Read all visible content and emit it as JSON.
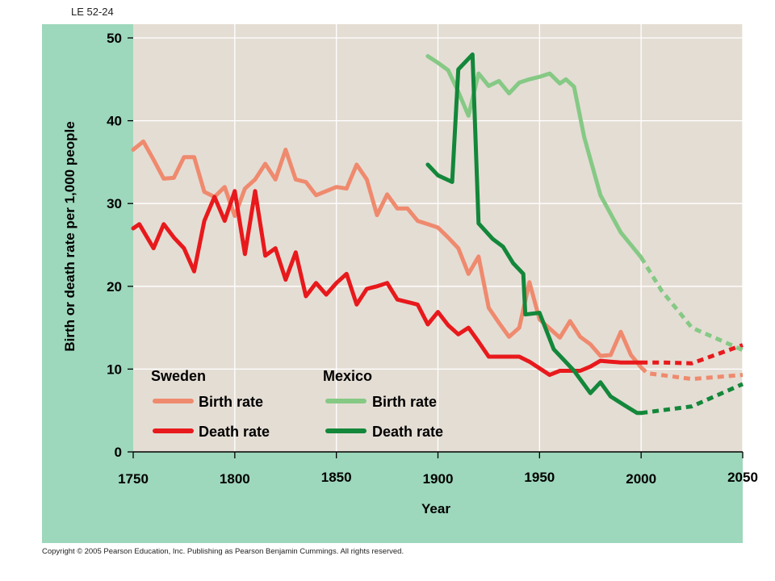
{
  "header": {
    "slide_label": "LE 52-24"
  },
  "footer": {
    "copyright_prefix": "Copyright",
    "copyright_symbol": "©",
    "copyright_text": "2005 Pearson Education, Inc. Publishing as Pearson Benjamin Cummings. All rights reserved."
  },
  "colors": {
    "panel": "#9dd7bc",
    "plot_bg": "#e4ddd4",
    "sweden_birth": "#ef8a6e",
    "sweden_death": "#e8191c",
    "mexico_birth": "#85c985",
    "mexico_death": "#13873a"
  },
  "chart_data": {
    "type": "line",
    "title": "",
    "xlabel": "Year",
    "ylabel": "Birth or death rate per 1,000 people",
    "xlim": [
      1750,
      2050
    ],
    "ylim": [
      0,
      50
    ],
    "x_ticks": [
      "1750",
      "1800",
      "1850",
      "1900",
      "1950",
      "2000",
      "2050"
    ],
    "y_ticks": [
      "0",
      "10",
      "20",
      "30",
      "40",
      "50"
    ],
    "grid": true,
    "legend": {
      "groups": [
        {
          "title": "Sweden",
          "entries": [
            "Birth rate",
            "Death rate"
          ]
        },
        {
          "title": "Mexico",
          "entries": [
            "Birth rate",
            "Death rate"
          ]
        }
      ],
      "placement": "bottom-left"
    },
    "series": [
      {
        "country": "Sweden",
        "name": "Birth rate",
        "color_key": "sweden_birth",
        "values": [
          [
            1750,
            36.5
          ],
          [
            1755,
            37.5
          ],
          [
            1760,
            35.3
          ],
          [
            1765,
            33
          ],
          [
            1770,
            33.1
          ],
          [
            1775,
            35.6
          ],
          [
            1780,
            35.6
          ],
          [
            1785,
            31.4
          ],
          [
            1790,
            30.8
          ],
          [
            1795,
            32
          ],
          [
            1800,
            28.5
          ],
          [
            1805,
            31.8
          ],
          [
            1810,
            32.9
          ],
          [
            1815,
            34.8
          ],
          [
            1820,
            32.9
          ],
          [
            1825,
            36.5
          ],
          [
            1830,
            32.9
          ],
          [
            1835,
            32.6
          ],
          [
            1840,
            31
          ],
          [
            1845,
            31.5
          ],
          [
            1850,
            32
          ],
          [
            1855,
            31.8
          ],
          [
            1860,
            34.7
          ],
          [
            1865,
            32.9
          ],
          [
            1870,
            28.6
          ],
          [
            1875,
            31.1
          ],
          [
            1880,
            29.4
          ],
          [
            1885,
            29.4
          ],
          [
            1890,
            27.9
          ],
          [
            1895,
            27.5
          ],
          [
            1900,
            27.1
          ],
          [
            1905,
            25.9
          ],
          [
            1910,
            24.6
          ],
          [
            1915,
            21.5
          ],
          [
            1920,
            23.6
          ],
          [
            1925,
            17.4
          ],
          [
            1930,
            15.6
          ],
          [
            1935,
            13.9
          ],
          [
            1940,
            15
          ],
          [
            1945,
            20.5
          ],
          [
            1950,
            16
          ],
          [
            1955,
            14.9
          ],
          [
            1960,
            13.8
          ],
          [
            1965,
            15.8
          ],
          [
            1970,
            13.9
          ],
          [
            1975,
            13
          ],
          [
            1980,
            11.6
          ],
          [
            1985,
            11.7
          ],
          [
            1990,
            14.5
          ],
          [
            1995,
            11.7
          ],
          [
            2000,
            10.2
          ]
        ],
        "projection": [
          [
            2000,
            10.2
          ],
          [
            2003,
            9.5
          ],
          [
            2025,
            8.8
          ],
          [
            2050,
            9.3
          ]
        ]
      },
      {
        "country": "Sweden",
        "name": "Death rate",
        "color_key": "sweden_death",
        "values": [
          [
            1750,
            27
          ],
          [
            1753,
            27.5
          ],
          [
            1760,
            24.6
          ],
          [
            1765,
            27.5
          ],
          [
            1770,
            25.9
          ],
          [
            1775,
            24.6
          ],
          [
            1780,
            21.8
          ],
          [
            1785,
            27.9
          ],
          [
            1790,
            30.8
          ],
          [
            1795,
            27.9
          ],
          [
            1800,
            31.5
          ],
          [
            1805,
            23.9
          ],
          [
            1810,
            31.5
          ],
          [
            1815,
            23.7
          ],
          [
            1820,
            24.6
          ],
          [
            1825,
            20.8
          ],
          [
            1830,
            24.1
          ],
          [
            1835,
            18.8
          ],
          [
            1840,
            20.4
          ],
          [
            1845,
            19
          ],
          [
            1850,
            20.4
          ],
          [
            1855,
            21.5
          ],
          [
            1860,
            17.8
          ],
          [
            1865,
            19.7
          ],
          [
            1870,
            20
          ],
          [
            1875,
            20.4
          ],
          [
            1880,
            18.4
          ],
          [
            1885,
            18.1
          ],
          [
            1890,
            17.8
          ],
          [
            1895,
            15.4
          ],
          [
            1900,
            16.9
          ],
          [
            1905,
            15.3
          ],
          [
            1910,
            14.2
          ],
          [
            1915,
            15
          ],
          [
            1920,
            13.3
          ],
          [
            1925,
            11.5
          ],
          [
            1930,
            11.5
          ],
          [
            1935,
            11.5
          ],
          [
            1940,
            11.5
          ],
          [
            1945,
            10.9
          ],
          [
            1950,
            10.1
          ],
          [
            1955,
            9.3
          ],
          [
            1960,
            9.8
          ],
          [
            1965,
            9.8
          ],
          [
            1970,
            9.8
          ],
          [
            1975,
            10.3
          ],
          [
            1980,
            11
          ],
          [
            1985,
            10.9
          ],
          [
            1990,
            10.8
          ],
          [
            2000,
            10.8
          ]
        ],
        "projection": [
          [
            2000,
            10.8
          ],
          [
            2010,
            10.8
          ],
          [
            2025,
            10.7
          ],
          [
            2050,
            12.9
          ]
        ]
      },
      {
        "country": "Mexico",
        "name": "Birth rate",
        "color_key": "mexico_birth",
        "values": [
          [
            1895,
            47.8
          ],
          [
            1900,
            47
          ],
          [
            1905,
            46.1
          ],
          [
            1910,
            43.5
          ],
          [
            1915,
            40.6
          ],
          [
            1920,
            45.7
          ],
          [
            1925,
            44.2
          ],
          [
            1930,
            44.8
          ],
          [
            1935,
            43.3
          ],
          [
            1940,
            44.6
          ],
          [
            1945,
            45
          ],
          [
            1950,
            45.3
          ],
          [
            1955,
            45.7
          ],
          [
            1960,
            44.5
          ],
          [
            1963,
            45
          ],
          [
            1967,
            44.1
          ],
          [
            1972,
            38
          ],
          [
            1980,
            31
          ],
          [
            1990,
            26.5
          ],
          [
            2000,
            23.5
          ]
        ],
        "projection": [
          [
            2000,
            23.5
          ],
          [
            2010,
            19.5
          ],
          [
            2025,
            15
          ],
          [
            2050,
            12.3
          ]
        ]
      },
      {
        "country": "Mexico",
        "name": "Death rate",
        "color_key": "mexico_death",
        "values": [
          [
            1895,
            34.7
          ],
          [
            1900,
            33.4
          ],
          [
            1907,
            32.6
          ],
          [
            1910,
            46.2
          ],
          [
            1917,
            48
          ],
          [
            1920,
            27.6
          ],
          [
            1927,
            25.7
          ],
          [
            1932,
            24.8
          ],
          [
            1937,
            22.8
          ],
          [
            1942,
            21.5
          ],
          [
            1943,
            16.6
          ],
          [
            1950,
            16.8
          ],
          [
            1957,
            12.4
          ],
          [
            1962,
            11.1
          ],
          [
            1967,
            9.8
          ],
          [
            1975,
            7.1
          ],
          [
            1980,
            8.4
          ],
          [
            1985,
            6.7
          ],
          [
            1992,
            5.6
          ],
          [
            1998,
            4.7
          ],
          [
            2000,
            4.7
          ]
        ],
        "projection": [
          [
            2000,
            4.7
          ],
          [
            2025,
            5.5
          ],
          [
            2050,
            8.2
          ]
        ]
      }
    ]
  }
}
